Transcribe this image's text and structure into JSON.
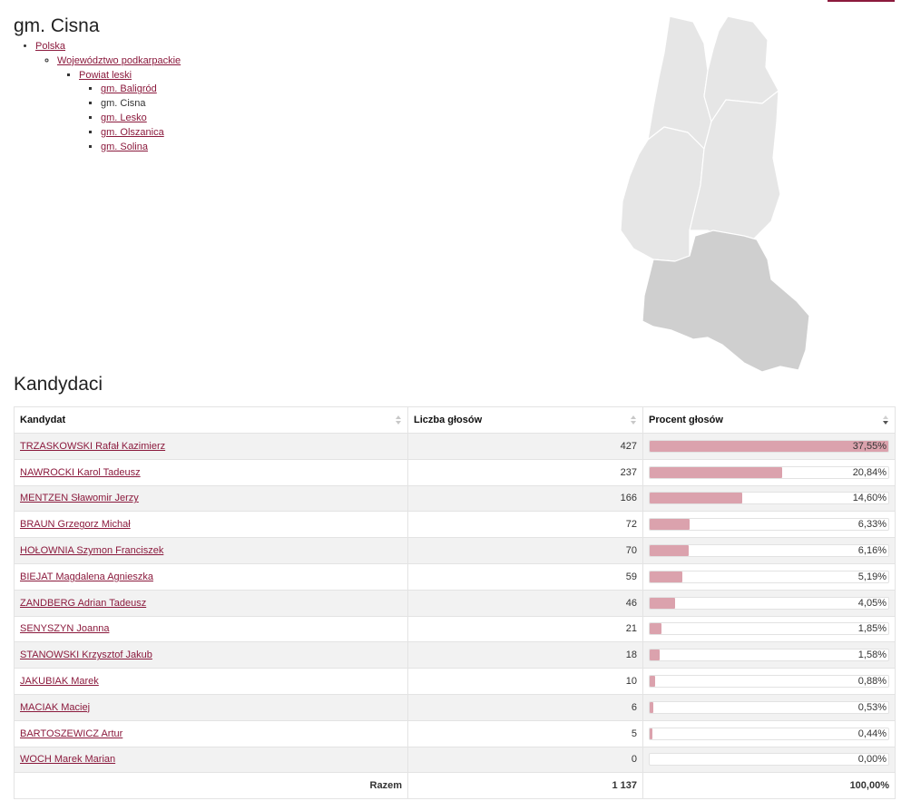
{
  "region": {
    "title": "gm. Cisna",
    "breadcrumb": {
      "country": "Polska",
      "voivodeship": "Województwo podkarpackie",
      "county": "Powiat leski",
      "municipalities": [
        {
          "label": "gm. Baligród",
          "current": false
        },
        {
          "label": "gm. Cisna",
          "current": true
        },
        {
          "label": "gm. Lesko",
          "current": false
        },
        {
          "label": "gm. Olszanica",
          "current": false
        },
        {
          "label": "gm. Solina",
          "current": false
        }
      ]
    }
  },
  "map": {
    "default_fill": "#e6e6e6",
    "selected_fill": "#cfcfcf",
    "border_color": "#ffffff"
  },
  "candidates": {
    "title": "Kandydaci",
    "columns": {
      "name": "Kandydat",
      "votes": "Liczba głosów",
      "percent": "Procent głosów"
    },
    "accent_color": "#dba2ad",
    "rows": [
      {
        "name": "TRZASKOWSKI Rafał Kazimierz",
        "votes": "427",
        "percent_label": "37,55%",
        "share": 1.0
      },
      {
        "name": "NAWROCKI Karol Tadeusz",
        "votes": "237",
        "percent_label": "20,84%",
        "share": 0.555
      },
      {
        "name": "MENTZEN Sławomir Jerzy",
        "votes": "166",
        "percent_label": "14,60%",
        "share": 0.389
      },
      {
        "name": "BRAUN Grzegorz Michał",
        "votes": "72",
        "percent_label": "6,33%",
        "share": 0.169
      },
      {
        "name": "HOŁOWNIA Szymon Franciszek",
        "votes": "70",
        "percent_label": "6,16%",
        "share": 0.164
      },
      {
        "name": "BIEJAT Magdalena Agnieszka",
        "votes": "59",
        "percent_label": "5,19%",
        "share": 0.138
      },
      {
        "name": "ZANDBERG Adrian Tadeusz",
        "votes": "46",
        "percent_label": "4,05%",
        "share": 0.108
      },
      {
        "name": "SENYSZYN Joanna",
        "votes": "21",
        "percent_label": "1,85%",
        "share": 0.049
      },
      {
        "name": "STANOWSKI Krzysztof Jakub",
        "votes": "18",
        "percent_label": "1,58%",
        "share": 0.042
      },
      {
        "name": "JAKUBIAK Marek",
        "votes": "10",
        "percent_label": "0,88%",
        "share": 0.023
      },
      {
        "name": "MACIAK Maciej",
        "votes": "6",
        "percent_label": "0,53%",
        "share": 0.014
      },
      {
        "name": "BARTOSZEWICZ Artur",
        "votes": "5",
        "percent_label": "0,44%",
        "share": 0.012
      },
      {
        "name": "WOCH Marek Marian",
        "votes": "0",
        "percent_label": "0,00%",
        "share": 0.0
      }
    ],
    "total": {
      "label": "Razem",
      "votes": "1 137",
      "percent": "100,00%"
    }
  }
}
